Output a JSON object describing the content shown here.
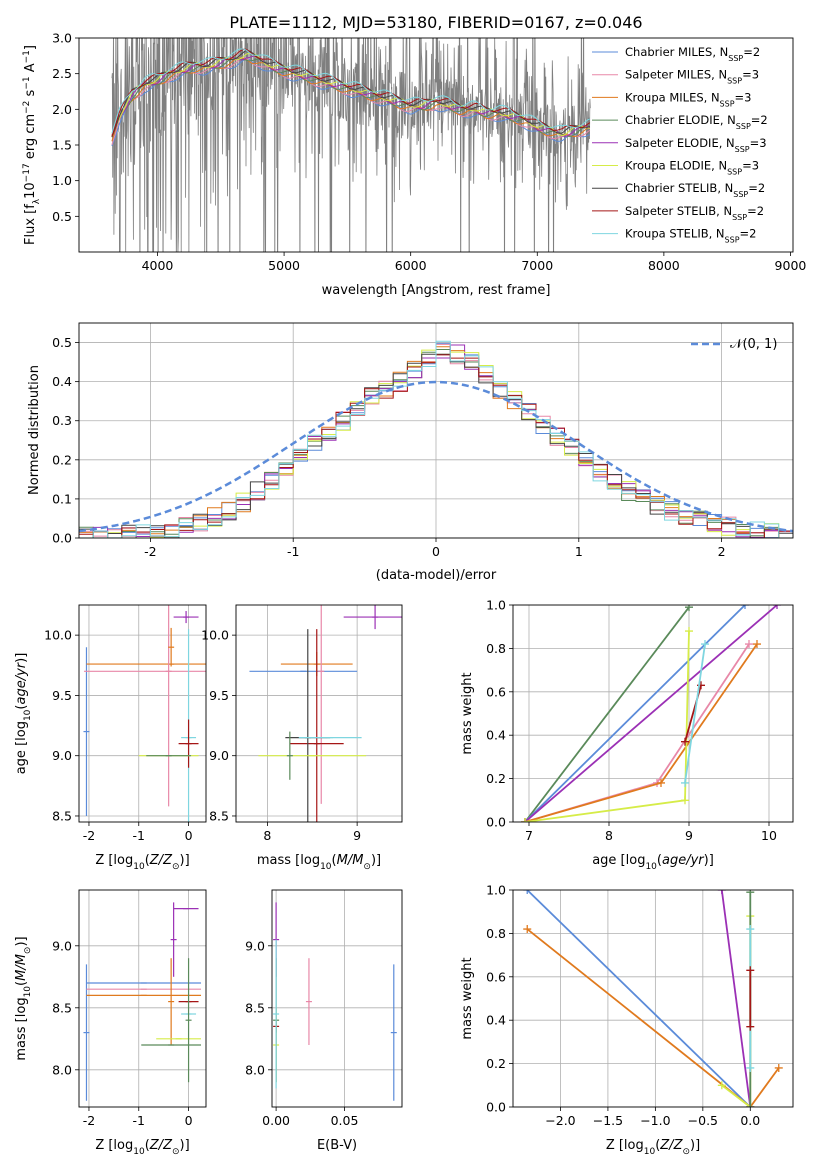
{
  "figure": {
    "title": "PLATE=1112, MJD=53180, FIBERID=0167, z=0.046"
  },
  "colors": {
    "Chabrier MILES": "#5b8bd9",
    "Salpeter MILES": "#e888a8",
    "Kroupa MILES": "#e07a1e",
    "Chabrier ELODIE": "#5a8a5a",
    "Salpeter ELODIE": "#9b30b5",
    "Kroupa ELODIE": "#d6ec48",
    "Chabrier STELIB": "#444444",
    "Salpeter STELIB": "#a51616",
    "Kroupa STELIB": "#7fd6e0"
  },
  "legend": [
    {
      "name": "Chabrier MILES",
      "nssp": "2"
    },
    {
      "name": "Salpeter MILES",
      "nssp": "3"
    },
    {
      "name": "Kroupa MILES",
      "nssp": "3"
    },
    {
      "name": "Chabrier ELODIE",
      "nssp": "2"
    },
    {
      "name": "Salpeter ELODIE",
      "nssp": "3"
    },
    {
      "name": "Kroupa ELODIE",
      "nssp": "3"
    },
    {
      "name": "Chabrier STELIB",
      "nssp": "2"
    },
    {
      "name": "Salpeter STELIB",
      "nssp": "2"
    },
    {
      "name": "Kroupa STELIB",
      "nssp": "2"
    }
  ],
  "chart_data": [
    {
      "id": "spectrum",
      "type": "line",
      "xlabel": "wavelength [Angstrom, rest frame]",
      "ylabel": "Flux [f_λ 10^-17 erg cm^-2 s^-1 A^-1]",
      "xlim": [
        3380,
        9020
      ],
      "ylim": [
        0.0,
        3.0
      ],
      "xticks": [
        4000,
        5000,
        6000,
        7000,
        8000,
        9000
      ],
      "yticks": [
        0.5,
        1.0,
        1.5,
        2.0,
        2.5,
        3.0
      ],
      "grid": false,
      "legend_position": "upper right",
      "observed_range": [
        3640,
        7420
      ],
      "model_curve": {
        "x": [
          3640,
          3700,
          3800,
          3900,
          4000,
          4100,
          4200,
          4300,
          4400,
          4500,
          4600,
          4700,
          4800,
          4900,
          5000,
          5100,
          5200,
          5300,
          5400,
          5500,
          5600,
          5700,
          5800,
          5900,
          6000,
          6100,
          6200,
          6300,
          6400,
          6500,
          6600,
          6700,
          6800,
          6900,
          7000,
          7100,
          7200,
          7300,
          7400
        ],
        "y": [
          1.6,
          1.9,
          2.2,
          2.35,
          2.4,
          2.5,
          2.55,
          2.6,
          2.6,
          2.65,
          2.7,
          2.75,
          2.7,
          2.6,
          2.55,
          2.5,
          2.45,
          2.4,
          2.35,
          2.3,
          2.25,
          2.2,
          2.15,
          2.1,
          2.05,
          2.05,
          2.1,
          2.05,
          2.0,
          2.0,
          1.95,
          1.95,
          1.9,
          1.85,
          1.75,
          1.7,
          1.65,
          1.7,
          1.75
        ]
      }
    },
    {
      "id": "residuals",
      "type": "line",
      "xlabel": "(data-model)/error",
      "ylabel": "Normed distribution",
      "xlim": [
        -2.5,
        2.5
      ],
      "ylim": [
        0.0,
        0.55
      ],
      "xticks": [
        -2,
        -1,
        0,
        1,
        2
      ],
      "yticks": [
        0.0,
        0.1,
        0.2,
        0.3,
        0.4,
        0.5
      ],
      "grid": true,
      "legend": [
        {
          "name": "N(0,1)",
          "label": "𝒩(0, 1)"
        }
      ],
      "legend_position": "upper right",
      "bin_edges_start": -2.5,
      "bin_width": 0.1,
      "histogram": [
        0.005,
        0.005,
        0.005,
        0.01,
        0.01,
        0.015,
        0.02,
        0.03,
        0.04,
        0.055,
        0.07,
        0.09,
        0.12,
        0.15,
        0.18,
        0.21,
        0.24,
        0.27,
        0.3,
        0.33,
        0.36,
        0.38,
        0.4,
        0.43,
        0.46,
        0.48,
        0.47,
        0.45,
        0.42,
        0.38,
        0.35,
        0.32,
        0.29,
        0.26,
        0.23,
        0.2,
        0.17,
        0.14,
        0.12,
        0.1,
        0.085,
        0.07,
        0.06,
        0.05,
        0.04,
        0.03,
        0.025,
        0.02,
        0.015,
        0.01
      ]
    },
    {
      "id": "z_vs_age",
      "type": "scatter",
      "xlabel": "Z [log10(Z/Z_sun)]",
      "ylabel": "age [log10(age/yr)]",
      "xlim": [
        -2.2,
        0.35
      ],
      "ylim": [
        8.45,
        10.25
      ],
      "xticks": [
        -2,
        -1,
        0
      ],
      "yticks": [
        8.5,
        9.0,
        9.5,
        10.0
      ],
      "grid": true,
      "points": [
        {
          "series": "Chabrier MILES",
          "x": -2.05,
          "y": 9.2,
          "xerr": 0.0,
          "yerr": 0.7
        },
        {
          "series": "Kroupa MILES",
          "x": -0.35,
          "y": 9.76,
          "xerr": 1.7,
          "yerr": 0.0
        },
        {
          "series": "Salpeter MILES",
          "x": -0.4,
          "y": 9.7,
          "xerr": 1.7,
          "yerr": 1.12
        },
        {
          "series": "Kroupa MILES",
          "x": -0.35,
          "y": 9.9,
          "xerr": 0.0,
          "yerr": 0.16
        },
        {
          "series": "Salpeter ELODIE",
          "x": -0.05,
          "y": 10.15,
          "xerr": 0.25,
          "yerr": 0.05
        },
        {
          "series": "Kroupa STELIB",
          "x": 0.0,
          "y": 9.15,
          "xerr": 0.15,
          "yerr": 0.9
        },
        {
          "series": "Salpeter STELIB",
          "x": 0.0,
          "y": 9.1,
          "xerr": 0.2,
          "yerr": 0.2
        },
        {
          "series": "Kroupa ELODIE",
          "x": -0.4,
          "y": 9.0,
          "xerr": 0.6,
          "yerr": 0.0
        },
        {
          "series": "Chabrier ELODIE",
          "x": -0.4,
          "y": 9.0,
          "xerr": 0.45,
          "yerr": 0.0
        }
      ]
    },
    {
      "id": "mass_vs_age",
      "type": "scatter",
      "xlabel": "mass [log10(M/M_sun)]",
      "ylabel": "",
      "xlim": [
        7.65,
        9.5
      ],
      "ylim": [
        8.45,
        10.25
      ],
      "xticks": [
        8,
        9
      ],
      "yticks": [
        8.5,
        9.0,
        9.5,
        10.0
      ],
      "grid": true,
      "points": [
        {
          "series": "Chabrier MILES",
          "x": 8.4,
          "y": 9.7,
          "xerr": 0.6,
          "yerr": 0.0
        },
        {
          "series": "Kroupa MILES",
          "x": 8.55,
          "y": 9.76,
          "xerr": 0.4,
          "yerr": 0.1
        },
        {
          "series": "Salpeter MILES",
          "x": 8.6,
          "y": 9.7,
          "xerr": 0.0,
          "yerr": 1.1
        },
        {
          "series": "Salpeter ELODIE",
          "x": 9.2,
          "y": 10.15,
          "xerr": 0.35,
          "yerr": 0.1
        },
        {
          "series": "Salpeter STELIB",
          "x": 8.55,
          "y": 9.1,
          "xerr": 0.3,
          "yerr": 0.95
        },
        {
          "series": "Chabrier STELIB",
          "x": 8.45,
          "y": 9.15,
          "xerr": 0.25,
          "yerr": 0.9
        },
        {
          "series": "Kroupa STELIB",
          "x": 8.7,
          "y": 9.15,
          "xerr": 0.35,
          "yerr": 0.0
        },
        {
          "series": "Kroupa ELODIE",
          "x": 8.5,
          "y": 9.0,
          "xerr": 0.6,
          "yerr": 0.0
        },
        {
          "series": "Chabrier ELODIE",
          "x": 8.25,
          "y": 9.0,
          "xerr": 0.0,
          "yerr": 0.2
        }
      ]
    },
    {
      "id": "age_vs_weight",
      "type": "line",
      "xlabel": "age [log10(age/yr)]",
      "ylabel": "mass weight",
      "xlim": [
        6.8,
        10.3
      ],
      "ylim": [
        0.0,
        1.0
      ],
      "xticks": [
        7,
        8,
        9,
        10
      ],
      "yticks": [
        0.0,
        0.2,
        0.4,
        0.6,
        0.8,
        1.0
      ],
      "grid": true,
      "series": [
        {
          "name": "Chabrier ELODIE",
          "x": [
            6.95,
            9.0
          ],
          "y": [
            0.0,
            0.99
          ]
        },
        {
          "name": "Chabrier MILES",
          "x": [
            6.95,
            9.7
          ],
          "y": [
            0.0,
            1.0
          ]
        },
        {
          "name": "Salpeter ELODIE",
          "x": [
            6.95,
            10.1
          ],
          "y": [
            0.0,
            1.0
          ]
        },
        {
          "name": "Salpeter MILES",
          "x": [
            6.95,
            8.6,
            9.75
          ],
          "y": [
            0.0,
            0.18,
            0.82
          ]
        },
        {
          "name": "Kroupa MILES",
          "x": [
            6.95,
            8.65,
            9.85
          ],
          "y": [
            0.0,
            0.18,
            0.82
          ]
        },
        {
          "name": "Kroupa ELODIE",
          "x": [
            6.95,
            8.95,
            9.0
          ],
          "y": [
            0.0,
            0.1,
            0.88
          ]
        },
        {
          "name": "Salpeter STELIB",
          "x": [
            8.95,
            9.15
          ],
          "y": [
            0.37,
            0.63
          ]
        },
        {
          "name": "Kroupa STELIB",
          "x": [
            8.95,
            9.2
          ],
          "y": [
            0.18,
            0.82
          ]
        }
      ]
    },
    {
      "id": "z_vs_mass",
      "type": "scatter",
      "xlabel": "Z [log10(Z/Z_sun)]",
      "ylabel": "mass [log10(M/M_sun)]",
      "xlim": [
        -2.2,
        0.35
      ],
      "ylim": [
        7.7,
        9.45
      ],
      "xticks": [
        -2,
        -1,
        0
      ],
      "yticks": [
        8.0,
        8.5,
        9.0
      ],
      "grid": true,
      "points": [
        {
          "series": "Chabrier MILES",
          "x": -0.9,
          "y": 8.7,
          "xerr": 1.15,
          "yerr": 0.0
        },
        {
          "series": "Chabrier MILES",
          "x": -2.05,
          "y": 8.3,
          "xerr": 0.0,
          "yerr": 0.55
        },
        {
          "series": "Salpeter MILES",
          "x": -0.9,
          "y": 8.65,
          "xerr": 1.15,
          "yerr": 0.0
        },
        {
          "series": "Kroupa MILES",
          "x": -0.9,
          "y": 8.6,
          "xerr": 1.15,
          "yerr": 0.0
        },
        {
          "series": "Kroupa MILES",
          "x": -0.35,
          "y": 8.55,
          "xerr": 0.0,
          "yerr": 0.35
        },
        {
          "series": "Salpeter ELODIE",
          "x": -0.05,
          "y": 9.3,
          "xerr": 0.25,
          "yerr": 0.0
        },
        {
          "series": "Salpeter ELODIE",
          "x": -0.3,
          "y": 9.05,
          "xerr": 0.0,
          "yerr": 0.3
        },
        {
          "series": "Salpeter STELIB",
          "x": 0.0,
          "y": 8.55,
          "xerr": 0.2,
          "yerr": 0.0
        },
        {
          "series": "Kroupa STELIB",
          "x": 0.0,
          "y": 8.45,
          "xerr": 0.15,
          "yerr": 0.0
        },
        {
          "series": "Kroupa ELODIE",
          "x": -0.2,
          "y": 8.25,
          "xerr": 0.45,
          "yerr": 0.0
        },
        {
          "series": "Chabrier ELODIE",
          "x": -0.35,
          "y": 8.2,
          "xerr": 0.6,
          "yerr": 0.0
        },
        {
          "series": "Chabrier ELODIE",
          "x": 0.0,
          "y": 8.4,
          "xerr": 0.0,
          "yerr": 0.5
        }
      ]
    },
    {
      "id": "ebv_vs_mass",
      "type": "scatter",
      "xlabel": "E(B-V)",
      "ylabel": "",
      "xlim": [
        -0.003,
        0.092
      ],
      "ylim": [
        7.7,
        9.45
      ],
      "xticks": [
        0.0,
        0.05
      ],
      "ytick_labels": [
        "8.0",
        "8.5",
        "9.0"
      ],
      "yticks": [
        8.0,
        8.5,
        9.0
      ],
      "grid": true,
      "points": [
        {
          "series": "Salpeter ELODIE",
          "x": 0.0,
          "y": 9.05,
          "xerr": 0.0,
          "yerr": 0.3
        },
        {
          "series": "Salpeter STELIB",
          "x": 0.0,
          "y": 8.35,
          "xerr": 0.0,
          "yerr": 0.05
        },
        {
          "series": "Kroupa ELODIE",
          "x": 0.0,
          "y": 8.2,
          "xerr": 0.0,
          "yerr": 0.3
        },
        {
          "series": "Chabrier ELODIE",
          "x": 0.0,
          "y": 8.4,
          "xerr": 0.0,
          "yerr": 0.5
        },
        {
          "series": "Kroupa STELIB",
          "x": 0.0,
          "y": 8.45,
          "xerr": 0.0,
          "yerr": 0.6
        },
        {
          "series": "Salpeter MILES",
          "x": 0.024,
          "y": 8.55,
          "xerr": 0.0,
          "yerr": 0.35
        },
        {
          "series": "Chabrier MILES",
          "x": 0.086,
          "y": 8.3,
          "xerr": 0.0,
          "yerr": 0.55
        }
      ]
    },
    {
      "id": "z_vs_weight",
      "type": "line",
      "xlabel": "Z [log10(Z/Z_sun)]",
      "ylabel": "mass weight",
      "xlim": [
        -2.5,
        0.45
      ],
      "ylim": [
        0.0,
        1.0
      ],
      "xticks": [
        -2.0,
        -1.5,
        -1.0,
        -0.5,
        0.0
      ],
      "yticks": [
        0.0,
        0.2,
        0.4,
        0.6,
        0.8,
        1.0
      ],
      "grid": true,
      "series": [
        {
          "name": "Chabrier MILES",
          "x": [
            -2.35,
            0.0
          ],
          "y": [
            1.0,
            0.0
          ]
        },
        {
          "name": "Kroupa MILES",
          "x": [
            -2.35,
            0.0,
            0.3
          ],
          "y": [
            0.82,
            0.0,
            0.18
          ]
        },
        {
          "name": "Salpeter ELODIE",
          "x": [
            -0.3,
            0.0
          ],
          "y": [
            1.0,
            0.0
          ]
        },
        {
          "name": "Kroupa ELODIE",
          "x": [
            -0.3,
            0.0,
            0.0
          ],
          "y": [
            0.1,
            0.0,
            0.88
          ]
        },
        {
          "name": "Chabrier ELODIE",
          "x": [
            0.0,
            0.0
          ],
          "y": [
            0.0,
            0.99
          ]
        },
        {
          "name": "Kroupa STELIB",
          "x": [
            0.0,
            0.0
          ],
          "y": [
            0.18,
            0.82
          ]
        },
        {
          "name": "Salpeter STELIB",
          "x": [
            0.0,
            0.0
          ],
          "y": [
            0.37,
            0.63
          ]
        }
      ]
    }
  ]
}
